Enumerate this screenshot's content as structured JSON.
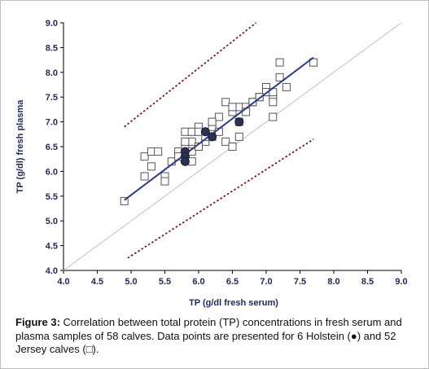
{
  "chart_data": {
    "type": "scatter",
    "xlabel": "TP (g/dl fresh serum)",
    "ylabel": "TP (g/dl) fresh plasma",
    "xlim": [
      4.0,
      9.0
    ],
    "ylim": [
      4.0,
      9.0
    ],
    "x_ticks": [
      "4.0",
      "4.5",
      "5.0",
      "5.5",
      "6.0",
      "6.5",
      "7.0",
      "7.5",
      "8.0",
      "8.5",
      "9.0"
    ],
    "y_ticks": [
      "4.0",
      "4.5",
      "5.0",
      "5.5",
      "6.0",
      "6.5",
      "7.0",
      "7.5",
      "8.0",
      "8.5",
      "9.0"
    ],
    "grid": false,
    "series": [
      {
        "marker": "square-open",
        "color": "#555555",
        "points": [
          [
            4.9,
            5.4
          ],
          [
            5.2,
            5.9
          ],
          [
            5.2,
            6.3
          ],
          [
            5.3,
            6.4
          ],
          [
            5.4,
            6.4
          ],
          [
            5.5,
            5.9
          ],
          [
            5.5,
            5.8
          ],
          [
            5.6,
            6.2
          ],
          [
            5.7,
            6.4
          ],
          [
            5.8,
            6.8
          ],
          [
            5.8,
            6.5
          ],
          [
            5.9,
            6.8
          ],
          [
            5.9,
            6.6
          ],
          [
            5.9,
            6.4
          ],
          [
            5.9,
            6.2
          ],
          [
            6.0,
            6.9
          ],
          [
            6.0,
            6.8
          ],
          [
            6.1,
            6.6
          ],
          [
            6.2,
            6.9
          ],
          [
            6.2,
            6.7
          ],
          [
            6.3,
            7.1
          ],
          [
            6.4,
            7.4
          ],
          [
            6.4,
            6.6
          ],
          [
            6.5,
            7.2
          ],
          [
            6.5,
            6.5
          ],
          [
            6.6,
            7.3
          ],
          [
            6.6,
            7.0
          ],
          [
            6.6,
            6.7
          ],
          [
            6.7,
            7.3
          ],
          [
            6.8,
            7.4
          ],
          [
            6.9,
            7.5
          ],
          [
            7.0,
            7.7
          ],
          [
            7.1,
            7.5
          ],
          [
            7.1,
            7.4
          ],
          [
            7.1,
            7.1
          ],
          [
            7.2,
            8.2
          ],
          [
            7.2,
            7.9
          ],
          [
            7.3,
            7.7
          ],
          [
            7.7,
            8.2
          ],
          [
            6.3,
            6.8
          ],
          [
            6.5,
            7.3
          ],
          [
            6.8,
            7.4
          ],
          [
            7.0,
            7.6
          ],
          [
            5.3,
            6.1
          ],
          [
            5.7,
            6.3
          ],
          [
            6.1,
            6.7
          ],
          [
            6.2,
            7.0
          ],
          [
            6.7,
            7.2
          ],
          [
            6.0,
            6.5
          ],
          [
            5.8,
            6.6
          ],
          [
            6.9,
            7.5
          ],
          [
            7.1,
            7.6
          ]
        ]
      },
      {
        "marker": "circle-filled",
        "color": "#2b3150",
        "points": [
          [
            5.8,
            6.4
          ],
          [
            5.8,
            6.3
          ],
          [
            5.8,
            6.2
          ],
          [
            6.1,
            6.8
          ],
          [
            6.2,
            6.7
          ],
          [
            6.6,
            7.0
          ]
        ]
      }
    ],
    "regression_line": {
      "from": [
        4.9,
        5.42
      ],
      "to": [
        7.7,
        8.3
      ],
      "color": "#2b3a8c"
    },
    "upper_limit": {
      "from": [
        4.9,
        6.9
      ],
      "to": [
        6.85,
        9.0
      ],
      "color": "#7a1a1a"
    },
    "lower_limit": {
      "from": [
        4.95,
        4.25
      ],
      "to": [
        7.7,
        6.65
      ],
      "color": "#7a1a1a"
    },
    "identity_line": {
      "from": [
        4.0,
        4.0
      ],
      "to": [
        9.0,
        9.0
      ],
      "color": "#d8b8b8"
    }
  },
  "caption": {
    "label": "Figure 3:",
    "text": " Correlation between total protein (TP) concentrations in fresh serum and plasma samples of 58 calves. Data points are presented for 6 Holstein (●) and 52 Jersey calves (□)."
  }
}
